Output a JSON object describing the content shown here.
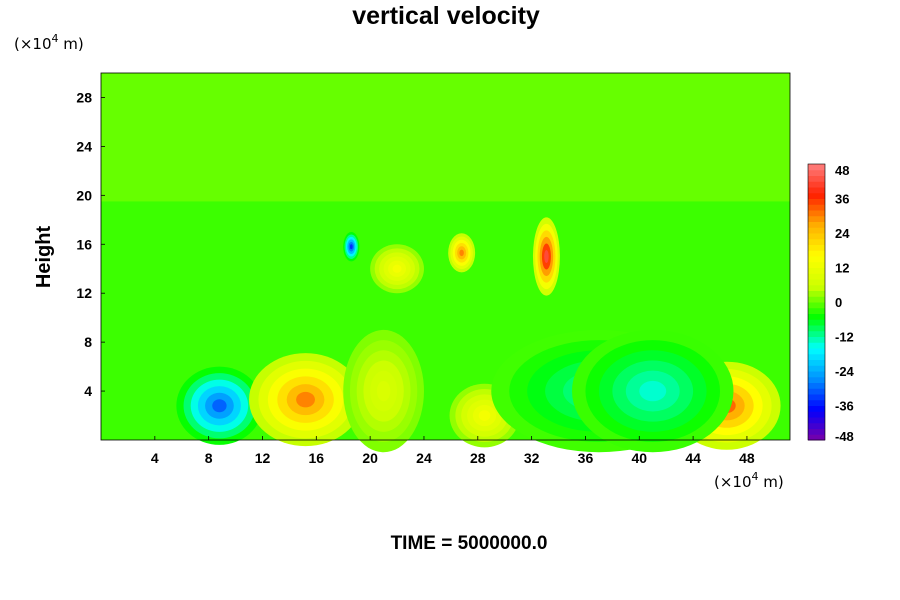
{
  "chart_data": {
    "type": "heatmap",
    "title": "vertical velocity",
    "ylabel": "Height",
    "xlabel": "",
    "x_unit": {
      "prefix": "(×10",
      "exp": "4",
      "suffix": " m)"
    },
    "y_unit": {
      "prefix": "(×10",
      "exp": "4",
      "suffix": " m)"
    },
    "xlim": [
      0,
      51.2
    ],
    "ylim": [
      0,
      30
    ],
    "x_ticks": [
      4,
      8,
      12,
      16,
      20,
      24,
      28,
      32,
      36,
      40,
      44,
      48
    ],
    "y_ticks": [
      4,
      8,
      12,
      16,
      20,
      24,
      28
    ],
    "colorbar": {
      "range": [
        -48,
        48
      ],
      "ticks": [
        48,
        36,
        24,
        12,
        0,
        -12,
        -24,
        -36,
        -48
      ],
      "colors": [
        "#7a00a8",
        "#0000ff",
        "#0090ff",
        "#00ffff",
        "#00ff00",
        "#ccff00",
        "#ffff00",
        "#ffb000",
        "#ff2000",
        "#ff8080"
      ]
    },
    "features": [
      {
        "x": 8.8,
        "y": 2.8,
        "value": -30,
        "sx": 1.6,
        "sy": 1.6
      },
      {
        "x": 15.2,
        "y": 3.3,
        "value": 30,
        "sx": 2.1,
        "sy": 1.9
      },
      {
        "x": 46.5,
        "y": 2.8,
        "value": 32,
        "sx": 2.0,
        "sy": 1.8
      },
      {
        "x": 28.5,
        "y": 2.0,
        "value": 14,
        "sx": 1.3,
        "sy": 1.3
      },
      {
        "x": 33.1,
        "y": 15.0,
        "value": 42,
        "sx": 0.5,
        "sy": 1.6
      },
      {
        "x": 26.8,
        "y": 15.3,
        "value": 30,
        "sx": 0.5,
        "sy": 0.8
      },
      {
        "x": 18.6,
        "y": 15.8,
        "value": -34,
        "sx": 0.3,
        "sy": 0.6
      },
      {
        "x": 22.0,
        "y": 14.0,
        "value": 14,
        "sx": 1.0,
        "sy": 1.0
      },
      {
        "x": 37.0,
        "y": 4.0,
        "value": -12,
        "sx": 4.0,
        "sy": 2.5
      },
      {
        "x": 41.0,
        "y": 4.0,
        "value": -14,
        "sx": 3.0,
        "sy": 2.5
      },
      {
        "x": 21.0,
        "y": 4.0,
        "value": 8,
        "sx": 1.5,
        "sy": 2.5
      }
    ],
    "footer": "TIME = 5000000.0"
  }
}
